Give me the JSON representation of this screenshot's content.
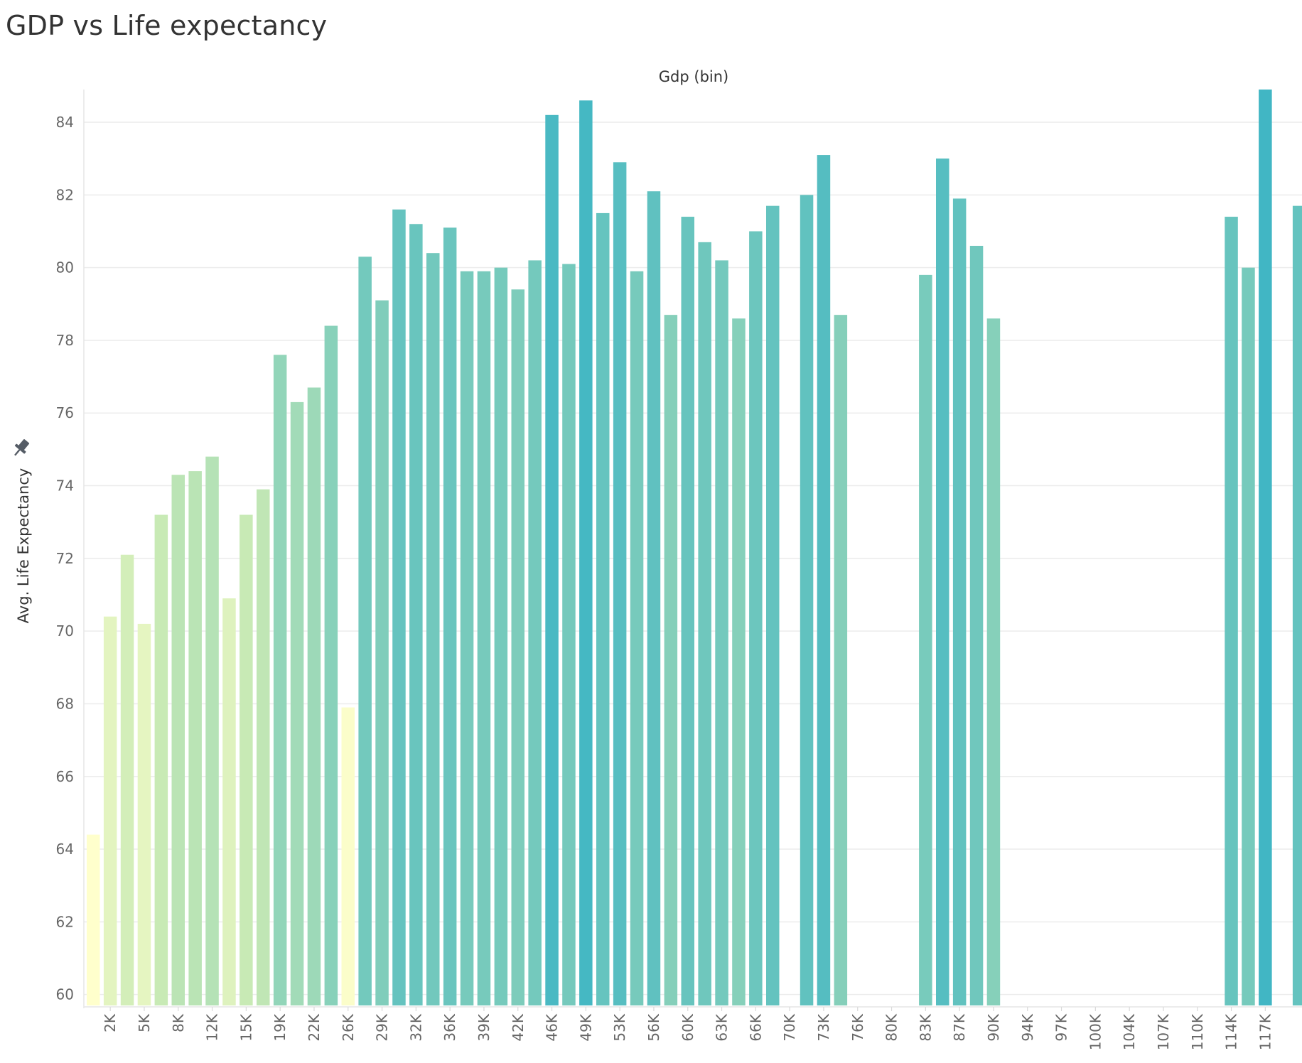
{
  "chart_data": {
    "type": "bar",
    "title": "GDP vs Life expectancy",
    "xlabel": "Gdp (bin)",
    "ylabel": "Avg. Life Expectancy",
    "ylim": [
      59.7,
      84.9
    ],
    "yticks": [
      60,
      62,
      64,
      66,
      68,
      70,
      72,
      74,
      76,
      78,
      80,
      82,
      84
    ],
    "grid": true,
    "x_tick_labels": [
      "2K",
      "5K",
      "8K",
      "12K",
      "15K",
      "19K",
      "22K",
      "26K",
      "29K",
      "32K",
      "36K",
      "39K",
      "42K",
      "46K",
      "49K",
      "53K",
      "56K",
      "60K",
      "63K",
      "66K",
      "70K",
      "73K",
      "76K",
      "80K",
      "83K",
      "87K",
      "90K",
      "94K",
      "97K",
      "100K",
      "104K",
      "107K",
      "110K",
      "114K",
      "117K"
    ],
    "bin_width": 1.63,
    "values": [
      64.4,
      70.4,
      72.1,
      70.2,
      73.2,
      74.3,
      74.4,
      74.8,
      70.9,
      73.2,
      73.9,
      77.6,
      76.3,
      76.7,
      78.4,
      67.9,
      80.3,
      79.1,
      81.6,
      81.2,
      80.4,
      81.1,
      79.9,
      79.9,
      80.0,
      79.4,
      80.2,
      84.2,
      80.1,
      84.6,
      81.5,
      82.9,
      79.9,
      82.1,
      78.7,
      81.4,
      80.7,
      80.2,
      78.6,
      81.0,
      81.7,
      null,
      82.0,
      83.1,
      78.7,
      null,
      null,
      null,
      null,
      79.8,
      83.0,
      81.9,
      80.6,
      78.6,
      null,
      null,
      null,
      null,
      null,
      null,
      null,
      null,
      null,
      null,
      null,
      null,
      null,
      81.4,
      80.0,
      85.0,
      null,
      81.7
    ],
    "color_scale": [
      "#ffffcc",
      "#c7e9b4",
      "#7fcdbb",
      "#41b6c4"
    ]
  }
}
